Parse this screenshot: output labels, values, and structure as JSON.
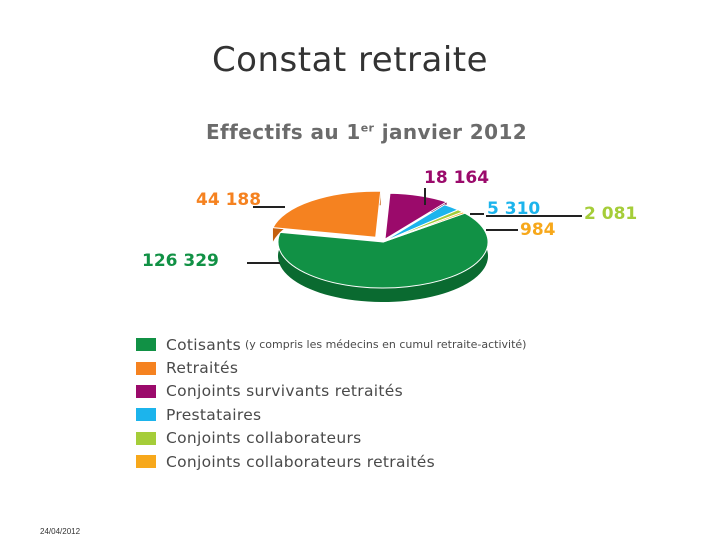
{
  "slide": {
    "title": "Constat retraite",
    "date": "24/04/2012"
  },
  "chart_data": {
    "type": "pie",
    "title_main": "Effectifs au 1",
    "title_sup": "er",
    "title_rest": " janvier 2012",
    "series": [
      {
        "name": "Cotisants",
        "note": "(y compris les médecins en cumul retraite-activité)",
        "value": 126329,
        "label": "126 329",
        "color": "#119145",
        "color_dark": "#0a6a30"
      },
      {
        "name": "Retraités",
        "note": "",
        "value": 44188,
        "label": "44 188",
        "color": "#f58220",
        "color_dark": "#c4600e"
      },
      {
        "name": "Conjoints survivants retraités",
        "note": "",
        "value": 18164,
        "label": "18 164",
        "color": "#9b0a6b",
        "color_dark": "#6e0549"
      },
      {
        "name": "Prestataires",
        "note": "",
        "value": 5310,
        "label": "5 310",
        "color": "#1cb4ec",
        "color_dark": "#0e86b3"
      },
      {
        "name": "Conjoints collaborateurs",
        "note": "",
        "value": 2081,
        "label": "2 081",
        "color": "#a5cd39",
        "color_dark": "#7c9d22"
      },
      {
        "name": "Conjoints collaborateurs retraités",
        "note": "",
        "value": 984,
        "label": "984",
        "color": "#f7a81b",
        "color_dark": "#c7830a"
      }
    ],
    "legend_position": "bottom"
  }
}
